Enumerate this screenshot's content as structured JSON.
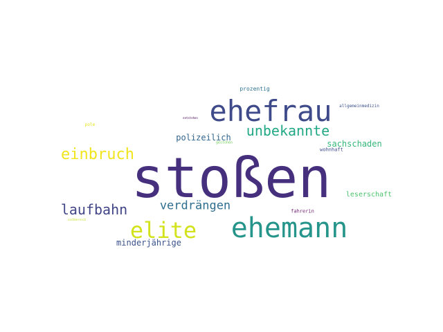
{
  "wordcloud": {
    "words": [
      {
        "text": "stoßen",
        "color": "#46307e"
      },
      {
        "text": "ehefrau",
        "color": "#3e4a89"
      },
      {
        "text": "ehemann",
        "color": "#25948b"
      },
      {
        "text": "elite",
        "color": "#d2e21b"
      },
      {
        "text": "einbruch",
        "color": "#f1e51d"
      },
      {
        "text": "unbekannte",
        "color": "#22a884"
      },
      {
        "text": "laufbahn",
        "color": "#414487"
      },
      {
        "text": "verdrängen",
        "color": "#2e6e8e"
      },
      {
        "text": "polizeilich",
        "color": "#31658e"
      },
      {
        "text": "sachschaden",
        "color": "#35b779"
      },
      {
        "text": "minderjährige",
        "color": "#3b528b"
      },
      {
        "text": "leserschaft",
        "color": "#4ac16d"
      },
      {
        "text": "prozentig",
        "color": "#2d708e"
      },
      {
        "text": "wohnhaft",
        "color": "#3e4989"
      },
      {
        "text": "fahrerin",
        "color": "#6d1d6f"
      },
      {
        "text": "allgemeinmedizin",
        "color": "#3b518b"
      },
      {
        "text": "pole",
        "color": "#e7e419"
      },
      {
        "text": "gestohen",
        "color": "#6ece58"
      },
      {
        "text": "entstehen",
        "color": "#440154"
      },
      {
        "text": "sachbereich",
        "color": "#c2df23"
      }
    ]
  }
}
